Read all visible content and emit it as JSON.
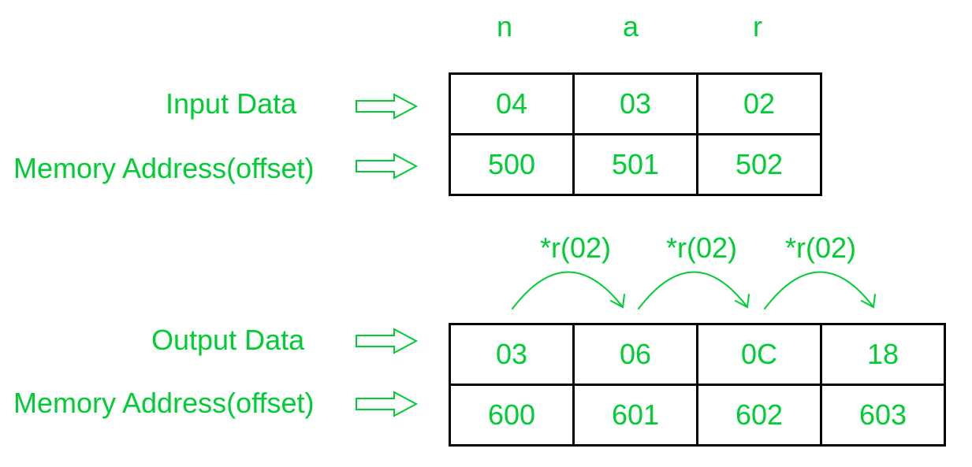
{
  "colors": {
    "text": "#00cc33",
    "arrows": "#00cc33",
    "grid_border": "#000000",
    "background": "#ffffff"
  },
  "input": {
    "headers": [
      "n",
      "a",
      "r"
    ],
    "data_label": "Input Data",
    "address_label": "Memory Address(offset)",
    "data": [
      "04",
      "03",
      "02"
    ],
    "addresses": [
      "500",
      "501",
      "502"
    ]
  },
  "output": {
    "operations": [
      "*r(02)",
      "*r(02)",
      "*r(02)"
    ],
    "data_label": "Output Data",
    "address_label": "Memory Address(offset)",
    "data": [
      "03",
      "06",
      "0C",
      "18"
    ],
    "addresses": [
      "600",
      "601",
      "602",
      "603"
    ]
  },
  "icons": {
    "pointer": "hollow-right-arrow-icon",
    "step": "curved-arrow-icon"
  }
}
